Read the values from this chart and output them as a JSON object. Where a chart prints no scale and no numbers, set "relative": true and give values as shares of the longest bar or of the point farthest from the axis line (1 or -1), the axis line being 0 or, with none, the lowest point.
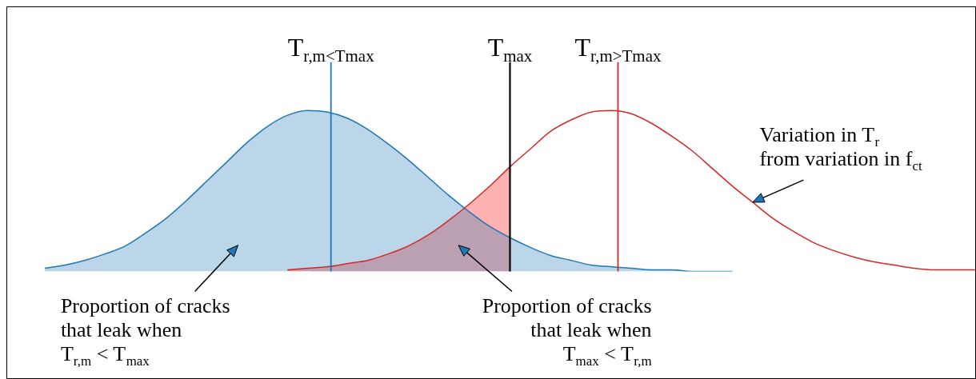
{
  "chart_data": {
    "type": "area",
    "relative": true,
    "categories": [
      null,
      null,
      null,
      null,
      null,
      null,
      null,
      null,
      null,
      null,
      null,
      null,
      null,
      null,
      null,
      null,
      null,
      null,
      null,
      null,
      null,
      null,
      null,
      null,
      null,
      null,
      null,
      null,
      null,
      null,
      null,
      null,
      null,
      null,
      null,
      null,
      null,
      null,
      null,
      null,
      null,
      null,
      null,
      null,
      null,
      null,
      null
    ],
    "series": [
      {
        "color": "#1f77b4",
        "values": [
          0.02,
          0.04,
          0.07,
          0.11,
          0.16,
          0.24,
          0.33,
          0.44,
          0.56,
          0.68,
          0.8,
          0.9,
          0.97,
          1.0,
          0.99,
          0.95,
          0.88,
          0.79,
          0.69,
          0.58,
          0.47,
          0.37,
          0.28,
          0.21,
          0.15,
          0.1,
          0.07,
          0.04,
          0.03,
          0.02,
          0.01,
          0.01,
          0,
          0,
          0,
          null,
          null,
          null,
          null,
          null,
          null,
          null,
          null,
          null,
          null,
          null,
          null
        ]
      },
      {
        "type": "area",
        "color": "#ff0000",
        "values": [
          null,
          null,
          null,
          null,
          null,
          null,
          null,
          null,
          null,
          null,
          null,
          null,
          0.01,
          0.02,
          0.03,
          0.05,
          0.07,
          0.11,
          0.16,
          0.23,
          0.32,
          0.42,
          0.53,
          0.65,
          null,
          null,
          null,
          null,
          null,
          null,
          null,
          null,
          null,
          null,
          null,
          null,
          null,
          null,
          null,
          null,
          null,
          null,
          null,
          null,
          null,
          null,
          null
        ]
      },
      {
        "type": "line",
        "color": "#d62728",
        "values": [
          null,
          null,
          null,
          null,
          null,
          null,
          null,
          null,
          null,
          null,
          null,
          null,
          0.01,
          0.02,
          0.03,
          0.05,
          0.07,
          0.11,
          0.16,
          0.23,
          0.32,
          0.42,
          0.53,
          0.65,
          0.76,
          0.87,
          0.94,
          0.99,
          1.0,
          0.98,
          0.92,
          0.84,
          0.75,
          0.64,
          0.53,
          0.43,
          0.33,
          0.25,
          0.18,
          0.13,
          0.09,
          0.06,
          0.04,
          0.02,
          0.01,
          0.01,
          0.01
        ]
      }
    ],
    "annotations": [
      "T$_{r,m<T}$$_{max}$",
      "T$_{max}$",
      "T$_{r,m>T}$$_{max}$",
      "Variation in T$_{r}$\nfrom variation in f$_{ct}$",
      "Proportion of cracks\nthat leak when\nT$_{r,m}$ < T$_{max}$",
      "Proportion of cracks\nthat leak when\nT$_{max}$ < T$_{r,m}$"
    ]
  }
}
